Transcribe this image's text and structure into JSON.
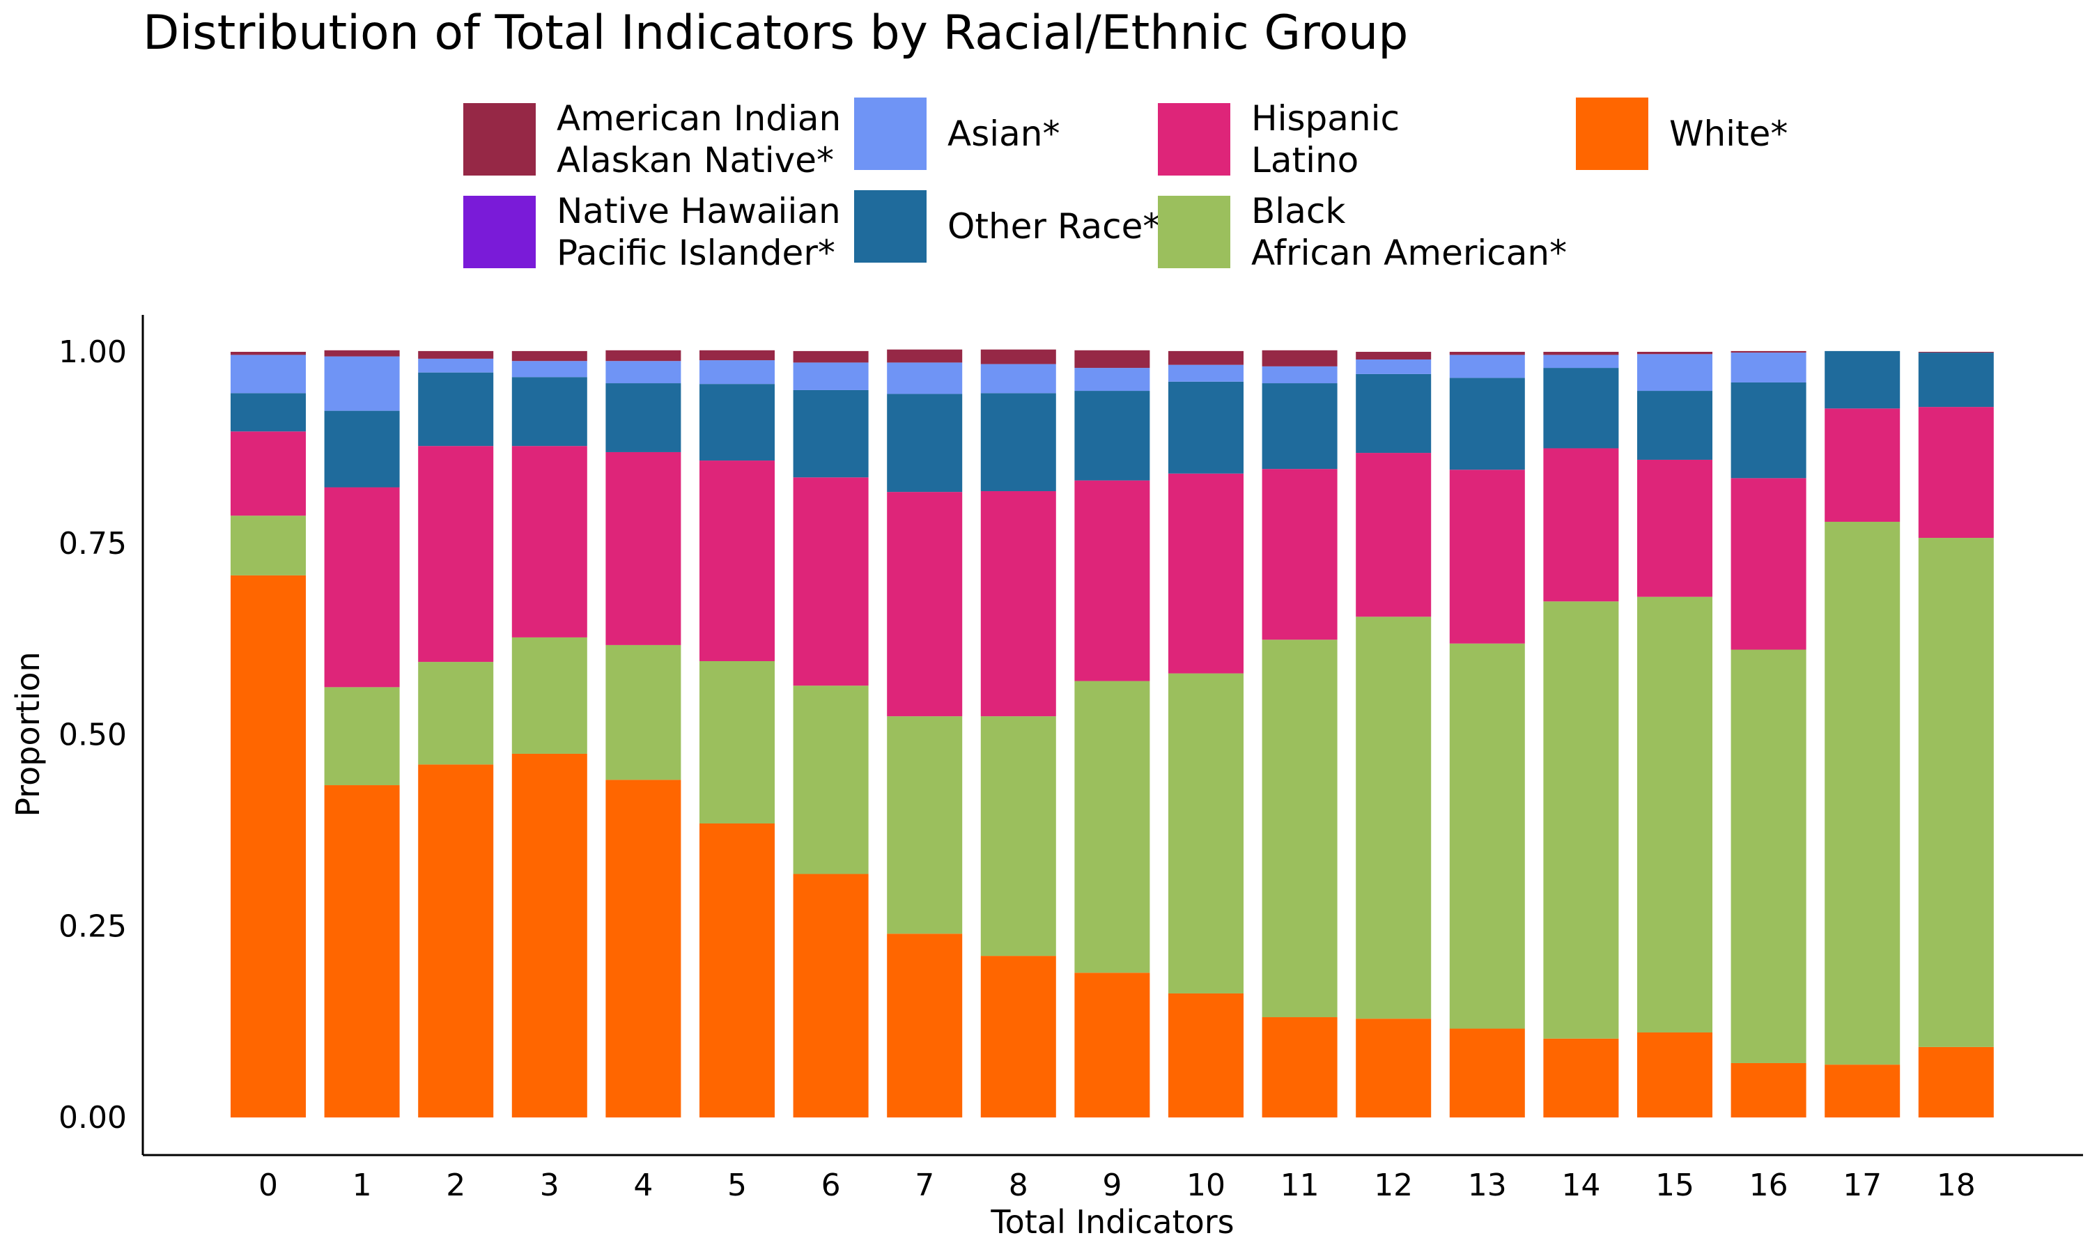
{
  "chart_data": {
    "type": "bar",
    "stacked": true,
    "title": "Distribution of Total Indicators by Racial/Ethnic Group",
    "xlabel": "Total Indicators",
    "ylabel": "Proportion",
    "ylim": [
      0,
      1.05
    ],
    "yticks": [
      "0.00",
      "0.25",
      "0.50",
      "0.75",
      "1.00"
    ],
    "ytick_values": [
      0,
      0.25,
      0.5,
      0.75,
      1.0
    ],
    "categories": [
      "0",
      "1",
      "2",
      "3",
      "4",
      "5",
      "6",
      "7",
      "8",
      "9",
      "10",
      "11",
      "12",
      "13",
      "14",
      "15",
      "16",
      "17",
      "18"
    ],
    "legend_position": "top",
    "series": [
      {
        "name": "White*",
        "color": "#ff6600",
        "values": [
          0.708,
          0.434,
          0.461,
          0.475,
          0.441,
          0.384,
          0.318,
          0.24,
          0.211,
          0.189,
          0.162,
          0.131,
          0.129,
          0.116,
          0.103,
          0.111,
          0.071,
          0.069,
          0.092
        ]
      },
      {
        "name": "Black\nAfrican American*",
        "color": "#9bbf5d",
        "values": [
          0.078,
          0.128,
          0.134,
          0.152,
          0.176,
          0.212,
          0.246,
          0.284,
          0.313,
          0.381,
          0.418,
          0.493,
          0.525,
          0.503,
          0.571,
          0.569,
          0.54,
          0.709,
          0.665
        ]
      },
      {
        "name": "Hispanic\nLatino",
        "color": "#de2579",
        "values": [
          0.11,
          0.261,
          0.282,
          0.25,
          0.252,
          0.262,
          0.272,
          0.293,
          0.294,
          0.262,
          0.261,
          0.223,
          0.214,
          0.227,
          0.2,
          0.179,
          0.224,
          0.148,
          0.171
        ]
      },
      {
        "name": "Other Race*",
        "color": "#1f6b9c",
        "values": [
          0.05,
          0.1,
          0.096,
          0.09,
          0.09,
          0.1,
          0.114,
          0.128,
          0.128,
          0.117,
          0.12,
          0.112,
          0.103,
          0.12,
          0.105,
          0.09,
          0.125,
          0.075,
          0.071
        ]
      },
      {
        "name": "Asian*",
        "color": "#6f94f5",
        "values": [
          0.05,
          0.071,
          0.018,
          0.021,
          0.029,
          0.031,
          0.036,
          0.041,
          0.038,
          0.03,
          0.022,
          0.022,
          0.019,
          0.03,
          0.017,
          0.048,
          0.039,
          0.0,
          0.0
        ]
      },
      {
        "name": "Native Hawaiian\nPacific Islander*",
        "color": "#7a1bd8",
        "values": [
          0,
          0,
          0,
          0,
          0,
          0,
          0,
          0,
          0,
          0,
          0,
          0,
          0,
          0,
          0,
          0,
          0,
          0,
          0
        ]
      },
      {
        "name": "American Indian\nAlaskan Native*",
        "color": "#962846",
        "values": [
          0.004,
          0.008,
          0.01,
          0.013,
          0.014,
          0.013,
          0.015,
          0.017,
          0.019,
          0.023,
          0.018,
          0.021,
          0.01,
          0.004,
          0.004,
          0.003,
          0.002,
          0.0,
          0.001
        ]
      }
    ],
    "legend_order": [
      "American Indian\nAlaskan Native*",
      "Asian*",
      "Hispanic\nLatino",
      "White*",
      "Native Hawaiian\nPacific Islander*",
      "Other Race*",
      "Black\nAfrican American*"
    ],
    "grid": false
  }
}
